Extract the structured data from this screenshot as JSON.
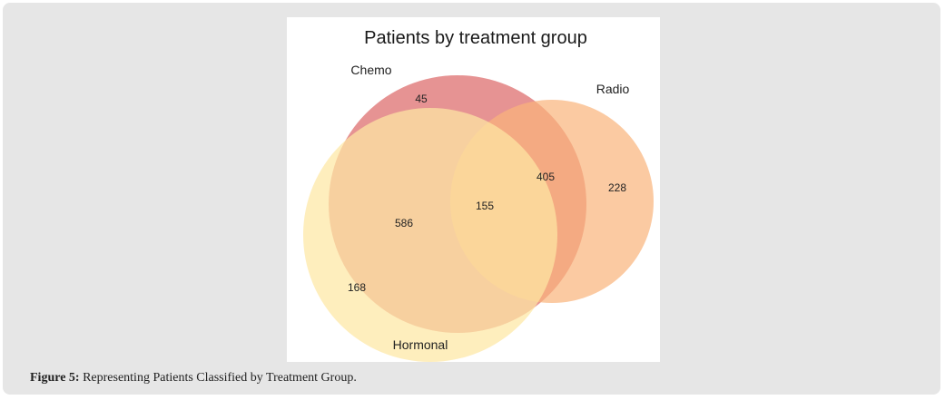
{
  "figure": {
    "title": "Patients by treatment group",
    "sets": [
      {
        "name": "Chemo",
        "color": "#e07878"
      },
      {
        "name": "Radio",
        "color": "#f9b47a"
      },
      {
        "name": "Hormonal",
        "color": "#fde7a3"
      }
    ],
    "regions": {
      "chemo_only": "45",
      "radio_only": "228",
      "hormonal_only": "168",
      "chemo_radio": "405",
      "chemo_hormonal": "586",
      "all_three": "155"
    }
  },
  "caption": {
    "label": "Figure 5:",
    "text": " Representing Patients Classified by Treatment Group."
  }
}
